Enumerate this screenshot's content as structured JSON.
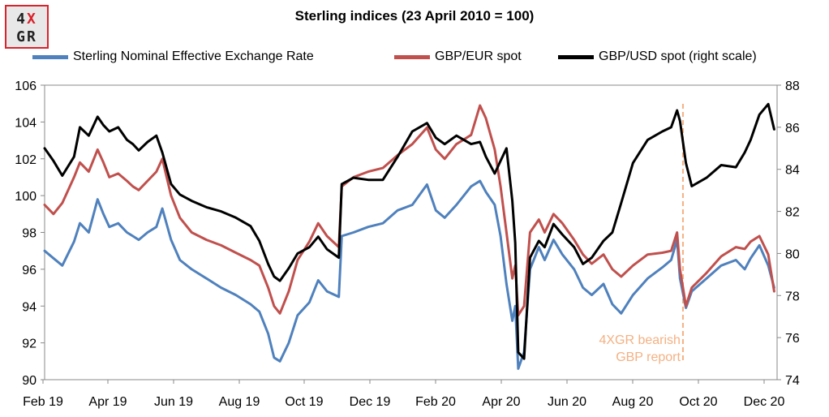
{
  "logo": {
    "line1_a": "4",
    "line1_b": "X",
    "line2": "GR"
  },
  "chart_data": {
    "type": "line",
    "title": "Sterling indices (23 April 2010 = 100)",
    "x_ticks": [
      "Feb 19",
      "Apr 19",
      "Jun 19",
      "Aug 19",
      "Oct 19",
      "Dec 19",
      "Feb 20",
      "Apr 20",
      "Jun 20",
      "Aug 20",
      "Oct 20",
      "Dec 20"
    ],
    "ylim_left": [
      90,
      106
    ],
    "yticks_left": [
      90,
      92,
      94,
      96,
      98,
      100,
      102,
      104,
      106
    ],
    "ylim_right": [
      74,
      88
    ],
    "yticks_right": [
      74,
      76,
      78,
      80,
      82,
      84,
      86,
      88
    ],
    "x_index_range": [
      0,
      23
    ],
    "legend_position": "top",
    "series": [
      {
        "name": "Sterling Nominal Effective Exchange Rate",
        "color": "#4f81bd",
        "axis": "left",
        "points": [
          [
            0,
            97.0
          ],
          [
            0.3,
            96.6
          ],
          [
            0.6,
            96.2
          ],
          [
            1.0,
            97.5
          ],
          [
            1.2,
            98.5
          ],
          [
            1.5,
            98.0
          ],
          [
            1.8,
            99.8
          ],
          [
            2.0,
            99.0
          ],
          [
            2.2,
            98.3
          ],
          [
            2.5,
            98.5
          ],
          [
            2.8,
            98.0
          ],
          [
            3.0,
            97.8
          ],
          [
            3.2,
            97.6
          ],
          [
            3.5,
            98.0
          ],
          [
            3.8,
            98.3
          ],
          [
            4.0,
            99.3
          ],
          [
            4.3,
            97.6
          ],
          [
            4.6,
            96.5
          ],
          [
            5.0,
            96.0
          ],
          [
            5.5,
            95.5
          ],
          [
            6.0,
            95.0
          ],
          [
            6.5,
            94.6
          ],
          [
            7.0,
            94.1
          ],
          [
            7.3,
            93.7
          ],
          [
            7.6,
            92.5
          ],
          [
            7.8,
            91.2
          ],
          [
            8.0,
            91.0
          ],
          [
            8.3,
            92.0
          ],
          [
            8.6,
            93.5
          ],
          [
            9.0,
            94.2
          ],
          [
            9.3,
            95.4
          ],
          [
            9.6,
            94.8
          ],
          [
            10.0,
            94.5
          ],
          [
            10.1,
            97.8
          ],
          [
            10.5,
            98.0
          ],
          [
            11.0,
            98.3
          ],
          [
            11.5,
            98.5
          ],
          [
            12.0,
            99.2
          ],
          [
            12.5,
            99.5
          ],
          [
            13.0,
            100.6
          ],
          [
            13.3,
            99.2
          ],
          [
            13.6,
            98.8
          ],
          [
            14.0,
            99.5
          ],
          [
            14.5,
            100.5
          ],
          [
            14.8,
            100.8
          ],
          [
            15.0,
            100.2
          ],
          [
            15.3,
            99.5
          ],
          [
            15.5,
            97.8
          ],
          [
            15.7,
            95.2
          ],
          [
            15.9,
            93.2
          ],
          [
            16.0,
            94.0
          ],
          [
            16.1,
            90.6
          ],
          [
            16.3,
            91.5
          ],
          [
            16.5,
            96.0
          ],
          [
            16.8,
            97.2
          ],
          [
            17.0,
            96.5
          ],
          [
            17.3,
            97.6
          ],
          [
            17.6,
            96.8
          ],
          [
            18.0,
            96.0
          ],
          [
            18.3,
            95.0
          ],
          [
            18.6,
            94.6
          ],
          [
            19.0,
            95.2
          ],
          [
            19.3,
            94.1
          ],
          [
            19.6,
            93.6
          ],
          [
            20.0,
            94.6
          ],
          [
            20.5,
            95.5
          ],
          [
            21.0,
            96.1
          ],
          [
            21.3,
            96.5
          ],
          [
            21.5,
            97.6
          ],
          [
            21.6,
            95.5
          ],
          [
            21.8,
            93.9
          ],
          [
            22.0,
            94.8
          ],
          [
            22.5,
            95.5
          ],
          [
            23.0,
            96.2
          ],
          [
            23.5,
            96.5
          ],
          [
            23.8,
            96.0
          ],
          [
            24.0,
            96.6
          ],
          [
            24.3,
            97.3
          ],
          [
            24.6,
            96.2
          ],
          [
            24.8,
            95.0
          ]
        ]
      },
      {
        "name": "GBP/EUR spot",
        "color": "#c0504d",
        "axis": "left",
        "points": [
          [
            0,
            99.5
          ],
          [
            0.3,
            99.0
          ],
          [
            0.6,
            99.6
          ],
          [
            1.0,
            101.0
          ],
          [
            1.2,
            101.8
          ],
          [
            1.5,
            101.3
          ],
          [
            1.8,
            102.5
          ],
          [
            2.0,
            101.8
          ],
          [
            2.2,
            101.0
          ],
          [
            2.5,
            101.2
          ],
          [
            2.8,
            100.8
          ],
          [
            3.0,
            100.5
          ],
          [
            3.2,
            100.3
          ],
          [
            3.5,
            100.8
          ],
          [
            3.8,
            101.3
          ],
          [
            4.0,
            102.0
          ],
          [
            4.3,
            100.0
          ],
          [
            4.6,
            98.8
          ],
          [
            5.0,
            98.0
          ],
          [
            5.5,
            97.6
          ],
          [
            6.0,
            97.3
          ],
          [
            6.5,
            96.9
          ],
          [
            7.0,
            96.5
          ],
          [
            7.3,
            96.2
          ],
          [
            7.6,
            95.0
          ],
          [
            7.8,
            94.0
          ],
          [
            8.0,
            93.6
          ],
          [
            8.3,
            94.8
          ],
          [
            8.6,
            96.5
          ],
          [
            9.0,
            97.5
          ],
          [
            9.3,
            98.5
          ],
          [
            9.6,
            97.8
          ],
          [
            10.0,
            97.2
          ],
          [
            10.1,
            100.5
          ],
          [
            10.5,
            101.0
          ],
          [
            11.0,
            101.3
          ],
          [
            11.5,
            101.5
          ],
          [
            12.0,
            102.2
          ],
          [
            12.5,
            102.8
          ],
          [
            13.0,
            103.7
          ],
          [
            13.3,
            102.5
          ],
          [
            13.6,
            102.0
          ],
          [
            14.0,
            102.8
          ],
          [
            14.5,
            103.3
          ],
          [
            14.8,
            104.9
          ],
          [
            15.0,
            104.2
          ],
          [
            15.3,
            102.5
          ],
          [
            15.5,
            100.5
          ],
          [
            15.7,
            98.0
          ],
          [
            15.9,
            95.5
          ],
          [
            16.0,
            96.2
          ],
          [
            16.1,
            93.5
          ],
          [
            16.3,
            94.0
          ],
          [
            16.5,
            98.0
          ],
          [
            16.8,
            98.7
          ],
          [
            17.0,
            98.0
          ],
          [
            17.3,
            99.0
          ],
          [
            17.6,
            98.5
          ],
          [
            18.0,
            97.6
          ],
          [
            18.3,
            96.8
          ],
          [
            18.6,
            96.3
          ],
          [
            19.0,
            96.8
          ],
          [
            19.3,
            96.0
          ],
          [
            19.6,
            95.6
          ],
          [
            20.0,
            96.2
          ],
          [
            20.5,
            96.8
          ],
          [
            21.0,
            96.9
          ],
          [
            21.3,
            97.0
          ],
          [
            21.5,
            98.0
          ],
          [
            21.6,
            96.0
          ],
          [
            21.8,
            94.0
          ],
          [
            22.0,
            95.0
          ],
          [
            22.5,
            95.8
          ],
          [
            23.0,
            96.7
          ],
          [
            23.5,
            97.2
          ],
          [
            23.8,
            97.1
          ],
          [
            24.0,
            97.5
          ],
          [
            24.3,
            97.8
          ],
          [
            24.6,
            96.8
          ],
          [
            24.8,
            94.8
          ]
        ]
      },
      {
        "name": "GBP/USD spot (right scale)",
        "color": "#000000",
        "axis": "right",
        "points": [
          [
            0,
            85.0
          ],
          [
            0.3,
            84.4
          ],
          [
            0.6,
            83.7
          ],
          [
            1.0,
            84.6
          ],
          [
            1.2,
            86.0
          ],
          [
            1.5,
            85.6
          ],
          [
            1.8,
            86.5
          ],
          [
            2.0,
            86.1
          ],
          [
            2.2,
            85.8
          ],
          [
            2.5,
            86.0
          ],
          [
            2.8,
            85.4
          ],
          [
            3.0,
            85.2
          ],
          [
            3.2,
            84.9
          ],
          [
            3.5,
            85.3
          ],
          [
            3.8,
            85.6
          ],
          [
            4.0,
            84.8
          ],
          [
            4.3,
            83.3
          ],
          [
            4.6,
            82.8
          ],
          [
            5.0,
            82.5
          ],
          [
            5.5,
            82.2
          ],
          [
            6.0,
            82.0
          ],
          [
            6.5,
            81.7
          ],
          [
            7.0,
            81.3
          ],
          [
            7.3,
            80.6
          ],
          [
            7.6,
            79.5
          ],
          [
            7.8,
            78.9
          ],
          [
            8.0,
            78.7
          ],
          [
            8.3,
            79.3
          ],
          [
            8.6,
            80.0
          ],
          [
            9.0,
            80.3
          ],
          [
            9.3,
            80.8
          ],
          [
            9.6,
            80.2
          ],
          [
            10.0,
            79.8
          ],
          [
            10.1,
            83.3
          ],
          [
            10.5,
            83.6
          ],
          [
            11.0,
            83.5
          ],
          [
            11.5,
            83.5
          ],
          [
            12.0,
            84.6
          ],
          [
            12.5,
            85.8
          ],
          [
            13.0,
            86.2
          ],
          [
            13.3,
            85.5
          ],
          [
            13.6,
            85.2
          ],
          [
            14.0,
            85.6
          ],
          [
            14.5,
            85.2
          ],
          [
            14.8,
            85.3
          ],
          [
            15.0,
            84.6
          ],
          [
            15.3,
            83.8
          ],
          [
            15.5,
            84.4
          ],
          [
            15.7,
            85.0
          ],
          [
            15.9,
            82.5
          ],
          [
            16.0,
            80.5
          ],
          [
            16.1,
            75.3
          ],
          [
            16.3,
            75.0
          ],
          [
            16.5,
            79.8
          ],
          [
            16.8,
            80.6
          ],
          [
            17.0,
            80.3
          ],
          [
            17.3,
            81.4
          ],
          [
            17.6,
            80.9
          ],
          [
            18.0,
            80.3
          ],
          [
            18.3,
            79.5
          ],
          [
            18.6,
            79.8
          ],
          [
            19.0,
            80.6
          ],
          [
            19.3,
            81.0
          ],
          [
            19.6,
            82.4
          ],
          [
            20.0,
            84.3
          ],
          [
            20.5,
            85.4
          ],
          [
            21.0,
            85.8
          ],
          [
            21.3,
            86.0
          ],
          [
            21.5,
            86.8
          ],
          [
            21.6,
            86.3
          ],
          [
            21.8,
            84.3
          ],
          [
            22.0,
            83.2
          ],
          [
            22.5,
            83.6
          ],
          [
            23.0,
            84.2
          ],
          [
            23.5,
            84.1
          ],
          [
            23.8,
            84.8
          ],
          [
            24.0,
            85.4
          ],
          [
            24.3,
            86.6
          ],
          [
            24.6,
            87.1
          ],
          [
            24.8,
            85.9
          ]
        ]
      }
    ],
    "annotation": {
      "x_index": 21.7,
      "color": "#f4b183",
      "text_lines": [
        "4XGR bearish",
        "GBP report"
      ]
    }
  }
}
